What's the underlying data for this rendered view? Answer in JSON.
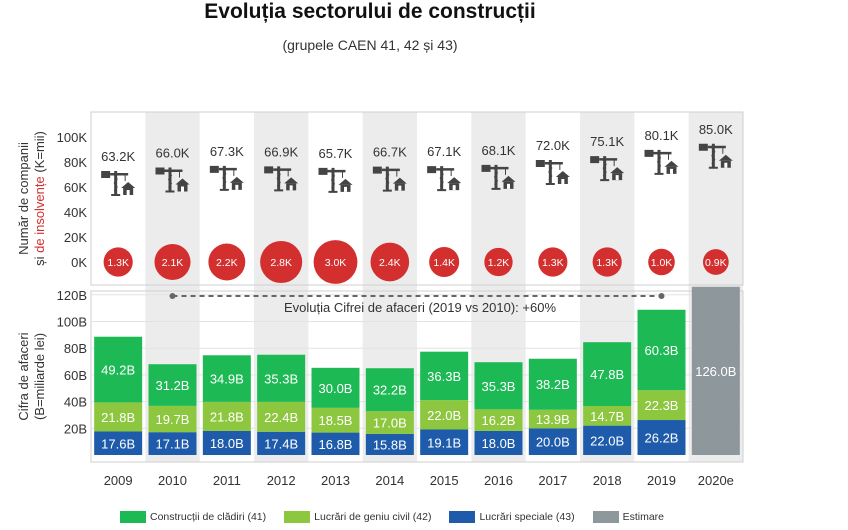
{
  "chart_title": "Evoluția sectorului de construcții",
  "chart_subtitle": "(grupele CAEN 41, 42 și 43)",
  "colors": {
    "cladiri": "#1db954",
    "geniu_civil": "#8dc63f",
    "speciale": "#1f5bab",
    "estimare": "#8e979c",
    "insolvency": "#d32f2f",
    "band": "#ececec",
    "grid": "#e3e3e3",
    "icon": "#444444"
  },
  "chart_data": [
    {
      "type": "scatter",
      "ylabel": "Număr de companii",
      "ylabel2_prefix": "și ",
      "ylabel2_highlight": "de insolvențe",
      "ylabel2_suffix": " (K=mii)",
      "yticks": [
        "100K",
        "80K",
        "60K",
        "40K",
        "20K",
        "0K"
      ],
      "ylim": [
        0,
        110
      ],
      "categories": [
        "2009",
        "2010",
        "2011",
        "2012",
        "2013",
        "2014",
        "2015",
        "2016",
        "2017",
        "2018",
        "2019",
        "2020e"
      ],
      "series": [
        {
          "values": [
            63.2,
            66.0,
            67.3,
            66.9,
            65.7,
            66.7,
            67.1,
            68.1,
            72.0,
            75.1,
            80.1,
            85.0
          ],
          "labels": [
            "63.2K",
            "66.0K",
            "67.3K",
            "66.9K",
            "65.7K",
            "66.7K",
            "67.1K",
            "68.1K",
            "72.0K",
            "75.1K",
            "80.1K",
            "85.0K"
          ]
        },
        {
          "values": [
            1.3,
            2.1,
            2.2,
            2.8,
            3.0,
            2.4,
            1.4,
            1.2,
            1.3,
            1.3,
            1.0,
            0.9
          ],
          "labels": [
            "1.3K",
            "2.1K",
            "2.2K",
            "2.8K",
            "3.0K",
            "2.4K",
            "1.4K",
            "1.2K",
            "1.3K",
            "1.3K",
            "1.0K",
            "0.9K"
          ]
        }
      ]
    },
    {
      "type": "bar",
      "ylabel": "Cifra de afaceri",
      "ylabel2": "(B=miliarde lei)",
      "yticks": [
        "120B",
        "100B",
        "80B",
        "60B",
        "40B",
        "20B"
      ],
      "ylim": [
        0,
        130
      ],
      "categories": [
        "2009",
        "2010",
        "2011",
        "2012",
        "2013",
        "2014",
        "2015",
        "2016",
        "2017",
        "2018",
        "2019",
        "2020e"
      ],
      "annotation": "Evoluția Cifrei de afaceri (2019 vs 2010): +60%",
      "series": [
        {
          "name": "Lucrări speciale (43)",
          "values": [
            17.6,
            17.1,
            18.0,
            17.4,
            16.8,
            15.8,
            19.1,
            18.0,
            20.0,
            22.0,
            26.2,
            null
          ],
          "labels": [
            "17.6B",
            "17.1B",
            "18.0B",
            "17.4B",
            "16.8B",
            "15.8B",
            "19.1B",
            "18.0B",
            "20.0B",
            "22.0B",
            "26.2B",
            ""
          ]
        },
        {
          "name": "Lucrări de geniu civil (42)",
          "values": [
            21.8,
            19.7,
            21.8,
            22.4,
            18.5,
            17.0,
            22.0,
            16.2,
            13.9,
            14.7,
            22.3,
            null
          ],
          "labels": [
            "21.8B",
            "19.7B",
            "21.8B",
            "22.4B",
            "18.5B",
            "17.0B",
            "22.0B",
            "16.2B",
            "13.9B",
            "14.7B",
            "22.3B",
            ""
          ]
        },
        {
          "name": "Construcții de clădiri (41)",
          "values": [
            49.2,
            31.2,
            34.9,
            35.3,
            30.0,
            32.2,
            36.3,
            35.3,
            38.2,
            47.8,
            60.3,
            null
          ],
          "labels": [
            "49.2B",
            "31.2B",
            "34.9B",
            "35.3B",
            "30.0B",
            "32.2B",
            "36.3B",
            "35.3B",
            "38.2B",
            "47.8B",
            "60.3B",
            ""
          ]
        },
        {
          "name": "Estimare",
          "values": [
            null,
            null,
            null,
            null,
            null,
            null,
            null,
            null,
            null,
            null,
            null,
            126.0
          ],
          "labels": [
            "",
            "",
            "",
            "",
            "",
            "",
            "",
            "",
            "",
            "",
            "",
            "126.0B"
          ]
        }
      ]
    }
  ],
  "legend": [
    {
      "label": "Construcții de clădiri (41)",
      "color_key": "cladiri"
    },
    {
      "label": "Lucrări de geniu civil (42)",
      "color_key": "geniu_civil"
    },
    {
      "label": "Lucrări speciale (43)",
      "color_key": "speciale"
    },
    {
      "label": "Estimare",
      "color_key": "estimare"
    }
  ],
  "icons": {
    "company": "crane-house-icon"
  }
}
